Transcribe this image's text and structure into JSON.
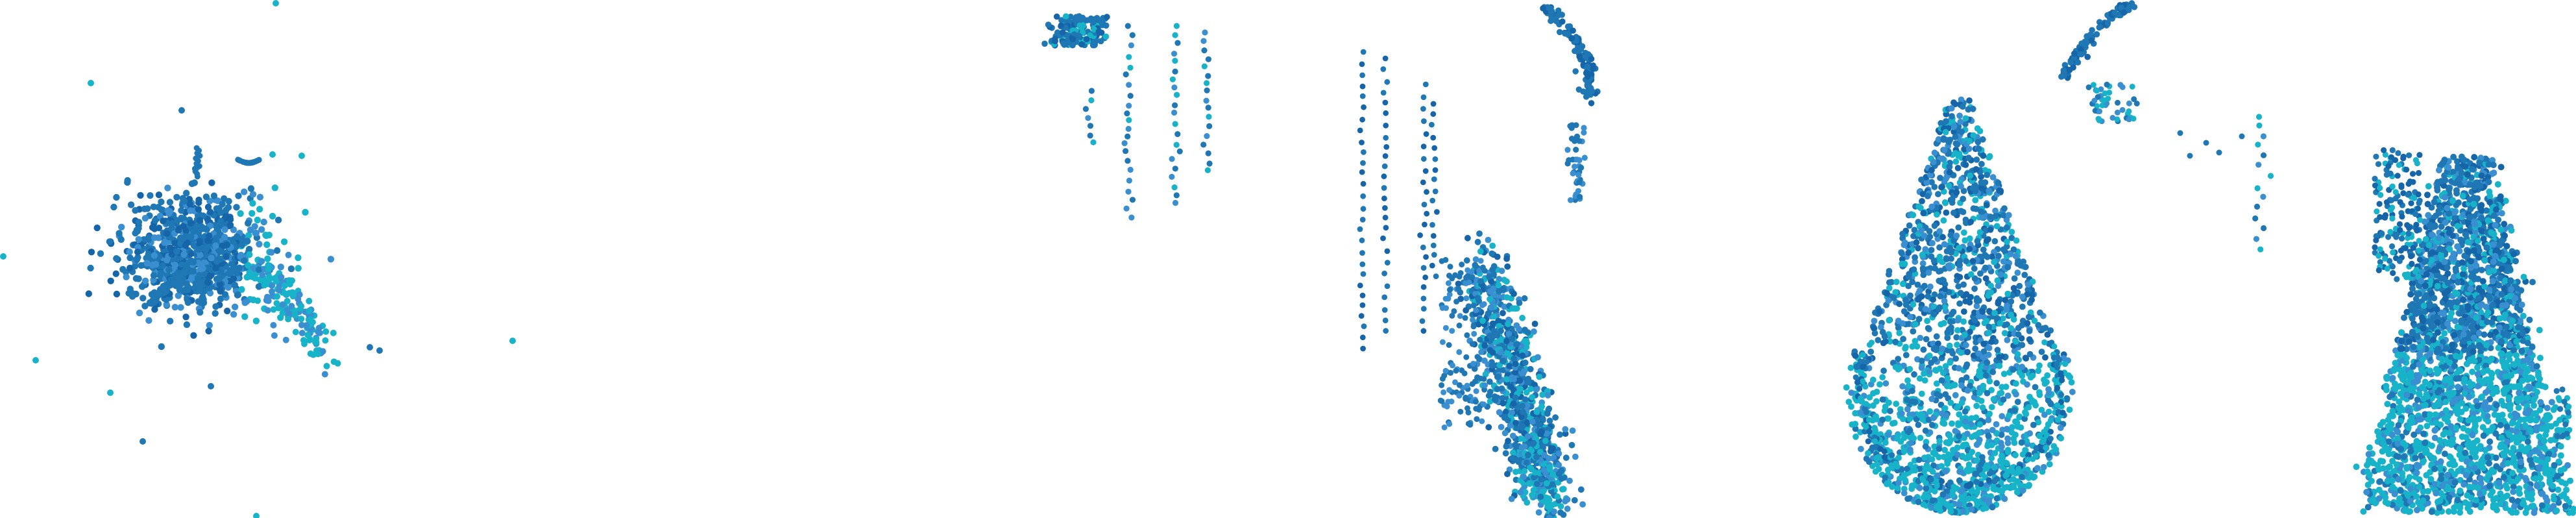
{
  "chart_data": [
    {
      "type": "scatter",
      "title": "",
      "xlabel": "",
      "ylabel": "",
      "grid": false,
      "legend": "none",
      "colors": {
        "primary": "#1f77b4",
        "secondary": "#17b3c9",
        "tertiary": "#3a8fd0"
      },
      "series": [
        {
          "color": "#1f77b4",
          "shape": "diffuse cluster with left-leaning core",
          "points": [
            [
              0.29,
              0.5
            ],
            [
              0.31,
              0.46
            ],
            [
              0.33,
              0.52
            ],
            [
              0.27,
              0.49
            ],
            [
              0.32,
              0.42
            ],
            [
              0.34,
              0.48
            ],
            [
              0.26,
              0.55
            ],
            [
              0.3,
              0.39
            ],
            [
              0.35,
              0.45
            ],
            [
              0.28,
              0.44
            ],
            [
              0.36,
              0.51
            ],
            [
              0.25,
              0.47
            ],
            [
              0.3,
              0.35
            ],
            [
              0.24,
              0.58
            ],
            [
              0.37,
              0.42
            ]
          ]
        },
        {
          "color": "#17b3c9",
          "shape": "trailing right arm",
          "points": [
            [
              0.42,
              0.5
            ],
            [
              0.44,
              0.55
            ],
            [
              0.46,
              0.48
            ],
            [
              0.45,
              0.6
            ],
            [
              0.48,
              0.63
            ],
            [
              0.47,
              0.68
            ],
            [
              0.43,
              0.64
            ],
            [
              0.5,
              0.58
            ]
          ]
        },
        {
          "color": "#1f77b4",
          "shape": "sparse outliers",
          "points": [
            [
              0.035,
              0.16
            ],
            [
              0.07,
              0.21
            ],
            [
              0.06,
              0.67
            ],
            [
              0.043,
              0.75
            ],
            [
              0.078,
              0.75
            ],
            [
              0.055,
              0.85
            ],
            [
              0.14,
              0.68
            ],
            [
              0.2,
              0.35
            ],
            [
              0.09,
              0.55
            ]
          ]
        }
      ]
    },
    {
      "type": "scatter",
      "title": "",
      "xlabel": "",
      "ylabel": "",
      "grid": false,
      "legend": "none",
      "series": [
        {
          "color": "#1f77b4",
          "shape": "top-left clump with vertical strands",
          "points": [
            [
              0.03,
              0.02
            ],
            [
              0.04,
              0.04
            ],
            [
              0.05,
              0.01
            ],
            [
              0.06,
              0.05
            ],
            [
              0.07,
              0.03
            ],
            [
              0.08,
              0.2
            ],
            [
              0.1,
              0.06
            ],
            [
              0.12,
              0.12
            ],
            [
              0.13,
              0.3
            ],
            [
              0.14,
              0.4
            ]
          ]
        },
        {
          "color": "#1f77b4",
          "shape": "dense elongated column at bottom center",
          "points": [
            [
              0.25,
              0.55
            ],
            [
              0.26,
              0.62
            ],
            [
              0.27,
              0.7
            ],
            [
              0.28,
              0.78
            ],
            [
              0.29,
              0.86
            ],
            [
              0.3,
              0.94
            ],
            [
              0.31,
              0.98
            ],
            [
              0.27,
              0.6
            ],
            [
              0.29,
              0.72
            ],
            [
              0.3,
              0.84
            ]
          ]
        },
        {
          "color": "#1f77b4",
          "shape": "upper arc",
          "points": [
            [
              0.55,
              0.12
            ],
            [
              0.57,
              0.06
            ],
            [
              0.6,
              0.02
            ],
            [
              0.62,
              0.18
            ],
            [
              0.63,
              0.28
            ]
          ]
        }
      ]
    },
    {
      "type": "scatter",
      "title": "",
      "xlabel": "",
      "ylabel": "",
      "grid": false,
      "legend": "none",
      "series": [
        {
          "color": "#1f77b4",
          "shape": "teardrop with rounded base",
          "points": [
            [
              0.08,
              0.2
            ],
            [
              0.07,
              0.35
            ],
            [
              0.08,
              0.5
            ],
            [
              0.06,
              0.65
            ],
            [
              0.05,
              0.78
            ],
            [
              0.1,
              0.85
            ],
            [
              0.03,
              0.72
            ],
            [
              0.11,
              0.7
            ]
          ]
        },
        {
          "color": "#1f77b4",
          "shape": "upper arc and strand",
          "points": [
            [
              0.36,
              0.02
            ],
            [
              0.39,
              0.05
            ],
            [
              0.43,
              0.22
            ],
            [
              0.5,
              0.3
            ],
            [
              0.58,
              0.35
            ]
          ]
        },
        {
          "color": "#17b3c9",
          "shape": "dense bell at right",
          "points": [
            [
              0.78,
              0.3
            ],
            [
              0.8,
              0.5
            ],
            [
              0.82,
              0.62
            ],
            [
              0.84,
              0.72
            ],
            [
              0.86,
              0.8
            ],
            [
              0.88,
              0.9
            ],
            [
              0.9,
              0.97
            ],
            [
              0.92,
              0.88
            ]
          ]
        }
      ]
    }
  ]
}
